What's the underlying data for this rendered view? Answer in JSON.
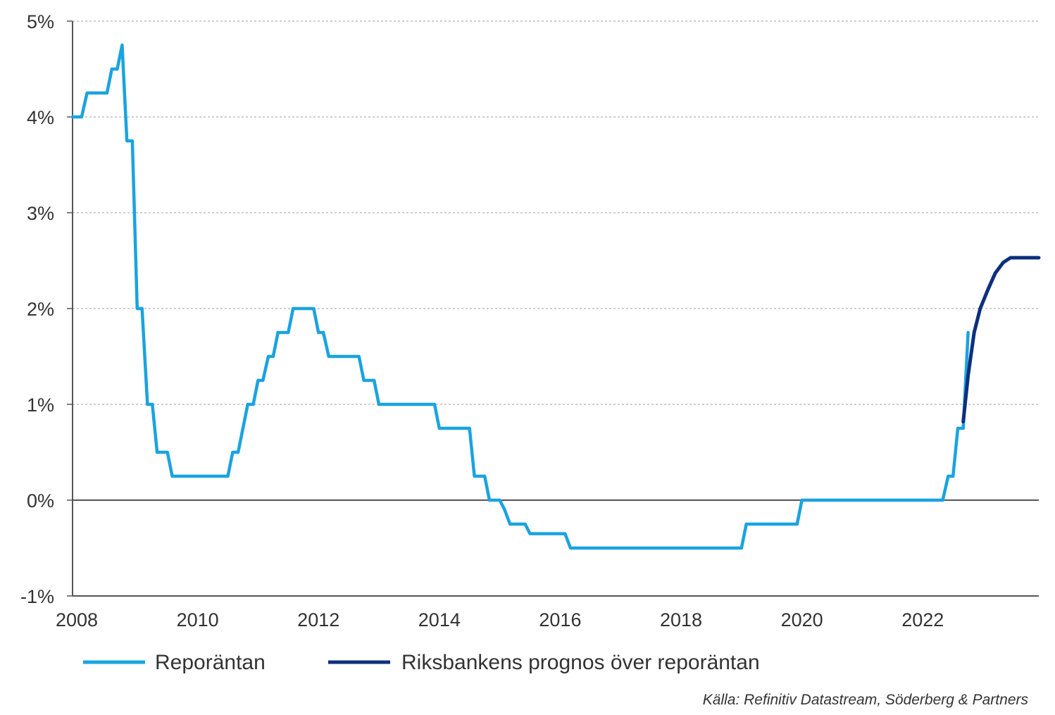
{
  "chart_data": {
    "type": "line",
    "title": "",
    "xlabel": "",
    "ylabel": "",
    "xlim": [
      2007.93,
      2023.92
    ],
    "ylim": [
      -1,
      5
    ],
    "grid": "horizontal-dotted",
    "legend_position": "bottom",
    "x_ticks": [
      {
        "value": 2008,
        "label": "2008"
      },
      {
        "value": 2010,
        "label": "2010"
      },
      {
        "value": 2012,
        "label": "2012"
      },
      {
        "value": 2014,
        "label": "2014"
      },
      {
        "value": 2016,
        "label": "2016"
      },
      {
        "value": 2018,
        "label": "2018"
      },
      {
        "value": 2020,
        "label": "2020"
      },
      {
        "value": 2022,
        "label": "2022"
      }
    ],
    "y_ticks": [
      {
        "value": 5,
        "label": "5%"
      },
      {
        "value": 4,
        "label": "4%"
      },
      {
        "value": 3,
        "label": "3%"
      },
      {
        "value": 2,
        "label": "2%"
      },
      {
        "value": 1,
        "label": "1%"
      },
      {
        "value": 0,
        "label": "0%"
      },
      {
        "value": -1,
        "label": "-1%"
      }
    ],
    "series": [
      {
        "name": "Reporäntan",
        "color": "#1aa3e0",
        "points": [
          [
            2007.93,
            4.0
          ],
          [
            2008.08,
            4.0
          ],
          [
            2008.17,
            4.25
          ],
          [
            2008.33,
            4.25
          ],
          [
            2008.5,
            4.25
          ],
          [
            2008.58,
            4.5
          ],
          [
            2008.67,
            4.5
          ],
          [
            2008.75,
            4.75
          ],
          [
            2008.83,
            3.75
          ],
          [
            2008.92,
            3.75
          ],
          [
            2009.0,
            2.0
          ],
          [
            2009.08,
            2.0
          ],
          [
            2009.17,
            1.0
          ],
          [
            2009.25,
            1.0
          ],
          [
            2009.33,
            0.5
          ],
          [
            2009.5,
            0.5
          ],
          [
            2009.58,
            0.25
          ],
          [
            2010.5,
            0.25
          ],
          [
            2010.58,
            0.5
          ],
          [
            2010.67,
            0.5
          ],
          [
            2010.83,
            1.0
          ],
          [
            2010.92,
            1.0
          ],
          [
            2011.0,
            1.25
          ],
          [
            2011.08,
            1.25
          ],
          [
            2011.17,
            1.5
          ],
          [
            2011.25,
            1.5
          ],
          [
            2011.33,
            1.75
          ],
          [
            2011.5,
            1.75
          ],
          [
            2011.58,
            2.0
          ],
          [
            2011.92,
            2.0
          ],
          [
            2012.0,
            1.75
          ],
          [
            2012.08,
            1.75
          ],
          [
            2012.17,
            1.5
          ],
          [
            2012.67,
            1.5
          ],
          [
            2012.75,
            1.25
          ],
          [
            2012.92,
            1.25
          ],
          [
            2013.0,
            1.0
          ],
          [
            2013.92,
            1.0
          ],
          [
            2014.0,
            0.75
          ],
          [
            2014.5,
            0.75
          ],
          [
            2014.58,
            0.25
          ],
          [
            2014.75,
            0.25
          ],
          [
            2014.83,
            0.0
          ],
          [
            2015.0,
            0.0
          ],
          [
            2015.08,
            -0.1
          ],
          [
            2015.17,
            -0.25
          ],
          [
            2015.42,
            -0.25
          ],
          [
            2015.5,
            -0.35
          ],
          [
            2016.08,
            -0.35
          ],
          [
            2016.17,
            -0.5
          ],
          [
            2019.0,
            -0.5
          ],
          [
            2019.08,
            -0.25
          ],
          [
            2019.92,
            -0.25
          ],
          [
            2020.0,
            0.0
          ],
          [
            2022.33,
            0.0
          ],
          [
            2022.42,
            0.25
          ],
          [
            2022.5,
            0.25
          ],
          [
            2022.58,
            0.75
          ],
          [
            2022.67,
            0.75
          ],
          [
            2022.75,
            1.75
          ]
        ]
      },
      {
        "name": "Riksbankens prognos över reporäntan",
        "color": "#0d2f7e",
        "points": [
          [
            2022.67,
            0.82
          ],
          [
            2022.75,
            1.3
          ],
          [
            2022.85,
            1.75
          ],
          [
            2022.95,
            2.0
          ],
          [
            2023.08,
            2.2
          ],
          [
            2023.2,
            2.37
          ],
          [
            2023.33,
            2.48
          ],
          [
            2023.45,
            2.53
          ],
          [
            2023.6,
            2.53
          ],
          [
            2023.92,
            2.53
          ]
        ]
      }
    ],
    "source": "Källa: Refinitiv Datastream, Söderberg & Partners"
  }
}
